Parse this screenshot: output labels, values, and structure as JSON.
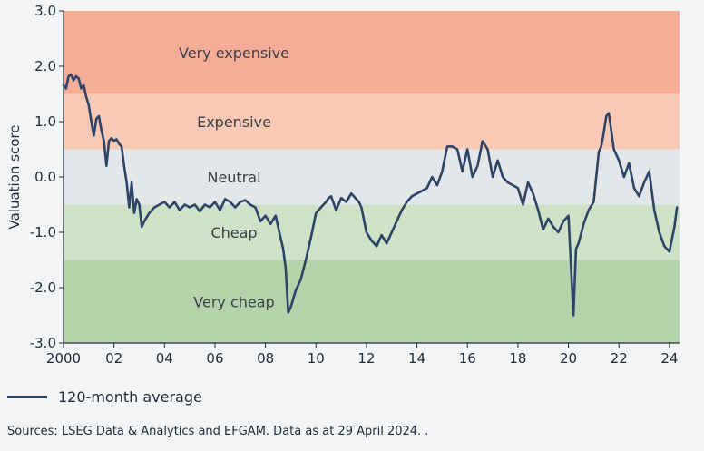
{
  "chart_data": {
    "type": "line",
    "title": "",
    "xlabel": "",
    "ylabel": "Valuation score",
    "ylim": [
      -3.0,
      3.0
    ],
    "xlim": [
      2000,
      2024.4
    ],
    "y_ticks": [
      3.0,
      2.0,
      1.0,
      0.0,
      -1.0,
      -2.0,
      -3.0
    ],
    "y_tick_labels": [
      "3.0",
      "2.0",
      "1.0",
      "0.0",
      "-1.0",
      "-2.0",
      "-3.0"
    ],
    "x_ticks": [
      2000,
      2002,
      2004,
      2006,
      2008,
      2010,
      2012,
      2014,
      2016,
      2018,
      2020,
      2022,
      2024
    ],
    "x_tick_labels": [
      "2000",
      "02",
      "04",
      "06",
      "08",
      "10",
      "12",
      "14",
      "16",
      "18",
      "20",
      "22",
      "24"
    ],
    "bands": [
      {
        "label": "Very expensive",
        "from": 1.5,
        "to": 3.0,
        "color": "#f6ad97"
      },
      {
        "label": "Expensive",
        "from": 0.5,
        "to": 1.5,
        "color": "#f9c9b6"
      },
      {
        "label": "Neutral",
        "from": -0.5,
        "to": 0.5,
        "color": "#e3e7ea"
      },
      {
        "label": "Cheap",
        "from": -1.5,
        "to": -0.5,
        "color": "#cfe2c8"
      },
      {
        "label": "Very cheap",
        "from": -3.0,
        "to": -1.5,
        "color": "#b5d3ab"
      }
    ],
    "series": [
      {
        "name": "120-month average",
        "color": "#2e4467",
        "x": [
          2000.0,
          2000.1,
          2000.2,
          2000.3,
          2000.4,
          2000.5,
          2000.6,
          2000.7,
          2000.8,
          2000.9,
          2001.0,
          2001.1,
          2001.2,
          2001.3,
          2001.4,
          2001.5,
          2001.6,
          2001.7,
          2001.8,
          2001.9,
          2002.0,
          2002.1,
          2002.2,
          2002.3,
          2002.4,
          2002.5,
          2002.6,
          2002.7,
          2002.8,
          2002.9,
          2003.0,
          2003.1,
          2003.2,
          2003.4,
          2003.6,
          2003.8,
          2004.0,
          2004.2,
          2004.4,
          2004.6,
          2004.8,
          2005.0,
          2005.2,
          2005.4,
          2005.6,
          2005.8,
          2006.0,
          2006.2,
          2006.4,
          2006.6,
          2006.8,
          2007.0,
          2007.2,
          2007.4,
          2007.6,
          2007.8,
          2008.0,
          2008.2,
          2008.4,
          2008.6,
          2008.7,
          2008.8,
          2008.9,
          2009.0,
          2009.2,
          2009.4,
          2009.6,
          2009.8,
          2010.0,
          2010.2,
          2010.4,
          2010.5,
          2010.6,
          2010.8,
          2011.0,
          2011.2,
          2011.4,
          2011.6,
          2011.7,
          2011.8,
          2012.0,
          2012.2,
          2012.4,
          2012.6,
          2012.8,
          2013.0,
          2013.2,
          2013.4,
          2013.6,
          2013.8,
          2014.0,
          2014.2,
          2014.4,
          2014.6,
          2014.8,
          2015.0,
          2015.2,
          2015.4,
          2015.6,
          2015.8,
          2016.0,
          2016.2,
          2016.4,
          2016.6,
          2016.8,
          2017.0,
          2017.2,
          2017.4,
          2017.6,
          2017.8,
          2018.0,
          2018.2,
          2018.4,
          2018.6,
          2018.8,
          2019.0,
          2019.2,
          2019.4,
          2019.6,
          2019.8,
          2020.0,
          2020.1,
          2020.2,
          2020.3,
          2020.4,
          2020.6,
          2020.8,
          2021.0,
          2021.2,
          2021.3,
          2021.4,
          2021.5,
          2021.6,
          2021.8,
          2022.0,
          2022.2,
          2022.4,
          2022.6,
          2022.8,
          2023.0,
          2023.2,
          2023.4,
          2023.6,
          2023.8,
          2024.0,
          2024.2,
          2024.3
        ],
        "y": [
          1.65,
          1.6,
          1.82,
          1.85,
          1.75,
          1.82,
          1.78,
          1.6,
          1.65,
          1.45,
          1.3,
          1.0,
          0.75,
          1.05,
          1.1,
          0.85,
          0.65,
          0.2,
          0.65,
          0.7,
          0.65,
          0.68,
          0.6,
          0.55,
          0.2,
          -0.1,
          -0.55,
          -0.1,
          -0.65,
          -0.4,
          -0.5,
          -0.9,
          -0.8,
          -0.65,
          -0.55,
          -0.5,
          -0.45,
          -0.55,
          -0.45,
          -0.6,
          -0.5,
          -0.55,
          -0.5,
          -0.62,
          -0.5,
          -0.55,
          -0.45,
          -0.6,
          -0.4,
          -0.45,
          -0.55,
          -0.45,
          -0.42,
          -0.5,
          -0.55,
          -0.8,
          -0.7,
          -0.85,
          -0.7,
          -1.1,
          -1.3,
          -1.65,
          -2.45,
          -2.35,
          -2.05,
          -1.85,
          -1.5,
          -1.1,
          -0.65,
          -0.55,
          -0.45,
          -0.38,
          -0.35,
          -0.6,
          -0.38,
          -0.45,
          -0.3,
          -0.4,
          -0.45,
          -0.55,
          -1.0,
          -1.15,
          -1.25,
          -1.05,
          -1.2,
          -1.0,
          -0.8,
          -0.6,
          -0.45,
          -0.35,
          -0.3,
          -0.25,
          -0.2,
          0.0,
          -0.15,
          0.1,
          0.55,
          0.55,
          0.5,
          0.1,
          0.5,
          0.0,
          0.2,
          0.65,
          0.5,
          0.0,
          0.3,
          0.0,
          -0.1,
          -0.15,
          -0.2,
          -0.5,
          -0.1,
          -0.3,
          -0.6,
          -0.95,
          -0.75,
          -0.9,
          -1.0,
          -0.8,
          -0.7,
          -1.6,
          -2.5,
          -1.3,
          -1.2,
          -0.85,
          -0.6,
          -0.45,
          0.45,
          0.55,
          0.8,
          1.1,
          1.15,
          0.5,
          0.3,
          0.0,
          0.25,
          -0.2,
          -0.35,
          -0.1,
          0.1,
          -0.6,
          -1.0,
          -1.25,
          -1.35,
          -0.9,
          -0.55
        ]
      }
    ]
  },
  "legend": {
    "series_label": "120-month average"
  },
  "source": "Sources: LSEG Data & Analytics and EFGAM. Data as at 29 April 2024. ."
}
